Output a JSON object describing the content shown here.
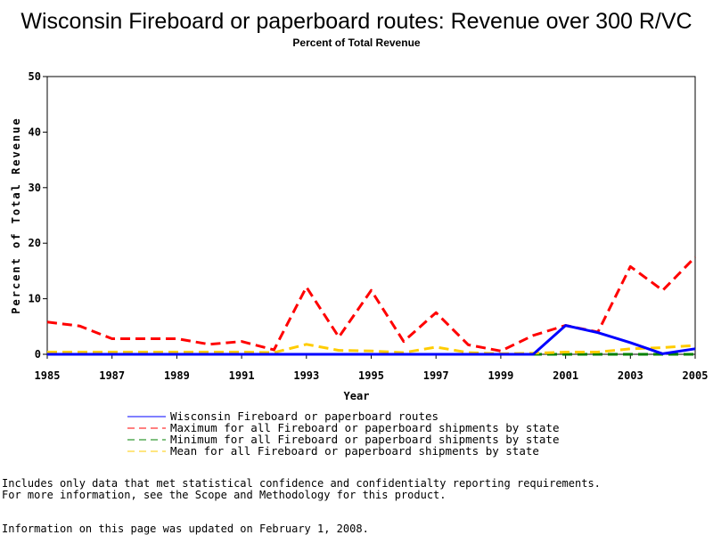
{
  "chart_data": {
    "type": "line",
    "title": "Wisconsin Fireboard or paperboard routes: Revenue over 300 R/VC",
    "subtitle": "Percent of Total Revenue",
    "xlabel": "Year",
    "ylabel": "Percent of Total Revenue",
    "xlim": [
      1985,
      2005
    ],
    "ylim": [
      0,
      50
    ],
    "x_ticks": [
      1985,
      1987,
      1989,
      1991,
      1993,
      1995,
      1997,
      1999,
      2001,
      2003,
      2005
    ],
    "y_ticks": [
      0,
      10,
      20,
      30,
      40,
      50
    ],
    "grid": false,
    "legend_position": "bottom",
    "series": [
      {
        "name": "Wisconsin Fireboard or paperboard routes",
        "color": "#0000ff",
        "dash": "solid",
        "x": [
          1985,
          1986,
          1987,
          1988,
          1989,
          1990,
          1991,
          1992,
          1993,
          1994,
          1995,
          1996,
          1997,
          1998,
          1999,
          2000,
          2001,
          2002,
          2003,
          2004,
          2005
        ],
        "values": [
          0,
          0,
          0,
          0,
          0,
          0,
          0,
          0,
          0,
          0,
          0,
          0,
          0,
          0,
          0,
          0,
          5.2,
          3.9,
          2.1,
          0.1,
          1.0
        ]
      },
      {
        "name": "Maximum for all Fireboard or paperboard shipments by state",
        "color": "#ff0000",
        "dash": "dashed",
        "x": [
          1985,
          1986,
          1987,
          1988,
          1989,
          1990,
          1991,
          1992,
          1993,
          1994,
          1995,
          1996,
          1997,
          1998,
          1999,
          2000,
          2001,
          2002,
          2003,
          2004,
          2005
        ],
        "values": [
          5.8,
          5.1,
          2.8,
          2.8,
          2.8,
          1.8,
          2.3,
          0.8,
          12.1,
          3.1,
          11.5,
          2.3,
          7.5,
          1.7,
          0.6,
          3.4,
          5.2,
          4.0,
          15.8,
          11.5,
          17.5
        ]
      },
      {
        "name": "Minimum for all Fireboard or paperboard shipments by state",
        "color": "#008000",
        "dash": "dashed",
        "x": [
          1985,
          1986,
          1987,
          1988,
          1989,
          1990,
          1991,
          1992,
          1993,
          1994,
          1995,
          1996,
          1997,
          1998,
          1999,
          2000,
          2001,
          2002,
          2003,
          2004,
          2005
        ],
        "values": [
          0,
          0,
          0,
          0,
          0,
          0,
          0,
          0,
          0,
          0,
          0,
          0,
          0,
          0,
          0,
          0,
          0,
          0,
          0,
          0,
          0
        ]
      },
      {
        "name": "Mean for all Fireboard or paperboard shipments by state",
        "color": "#ffcc00",
        "dash": "dashed",
        "x": [
          1985,
          1986,
          1987,
          1988,
          1989,
          1990,
          1991,
          1992,
          1993,
          1994,
          1995,
          1996,
          1997,
          1998,
          1999,
          2000,
          2001,
          2002,
          2003,
          2004,
          2005
        ],
        "values": [
          0.4,
          0.4,
          0.4,
          0.4,
          0.4,
          0.4,
          0.4,
          0.3,
          1.8,
          0.7,
          0.6,
          0.3,
          1.3,
          0.3,
          0.1,
          0.2,
          0.4,
          0.4,
          1.0,
          1.2,
          1.6
        ]
      }
    ]
  },
  "notes": {
    "line1": "Includes only data that met statistical confidence and confidentialty reporting requirements.",
    "line2": "For more information, see the Scope and Methodology for this product.",
    "updated": "Information on this page was updated on February 1, 2008."
  }
}
